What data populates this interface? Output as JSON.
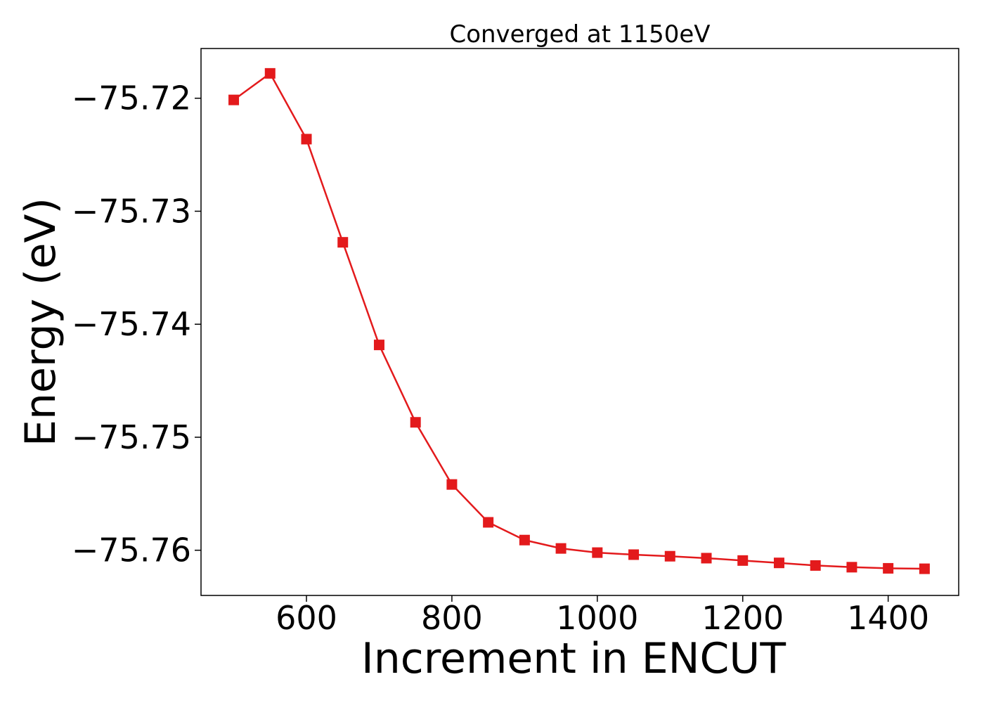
{
  "chart_data": {
    "type": "line",
    "title": "Converged at 1150eV",
    "xlabel": "Increment in ENCUT",
    "ylabel": "Energy (eV)",
    "xlim": [
      455,
      1497
    ],
    "ylim": [
      -75.764,
      -75.7156
    ],
    "x_ticks": [
      600,
      800,
      1000,
      1200,
      1400
    ],
    "x_tick_labels": [
      "600",
      "800",
      "1000",
      "1200",
      "1400"
    ],
    "y_ticks": [
      -75.72,
      -75.73,
      -75.74,
      -75.75,
      -75.76
    ],
    "y_tick_labels": [
      "−75.72",
      "−75.73",
      "−75.74",
      "−75.75",
      "−75.76"
    ],
    "grid": false,
    "series": [
      {
        "color": "#e31a1c",
        "marker": "square",
        "x": [
          500,
          550,
          600,
          650,
          700,
          750,
          800,
          850,
          900,
          950,
          1000,
          1050,
          1100,
          1150,
          1200,
          1250,
          1300,
          1350,
          1400,
          1450
        ],
        "y": [
          -75.72015,
          -75.7178,
          -75.72362,
          -75.73275,
          -75.74183,
          -75.74868,
          -75.75418,
          -75.75753,
          -75.7591,
          -75.75984,
          -75.76021,
          -75.76039,
          -75.76053,
          -75.7607,
          -75.76091,
          -75.76112,
          -75.76135,
          -75.7615,
          -75.7616,
          -75.76164
        ]
      }
    ]
  }
}
